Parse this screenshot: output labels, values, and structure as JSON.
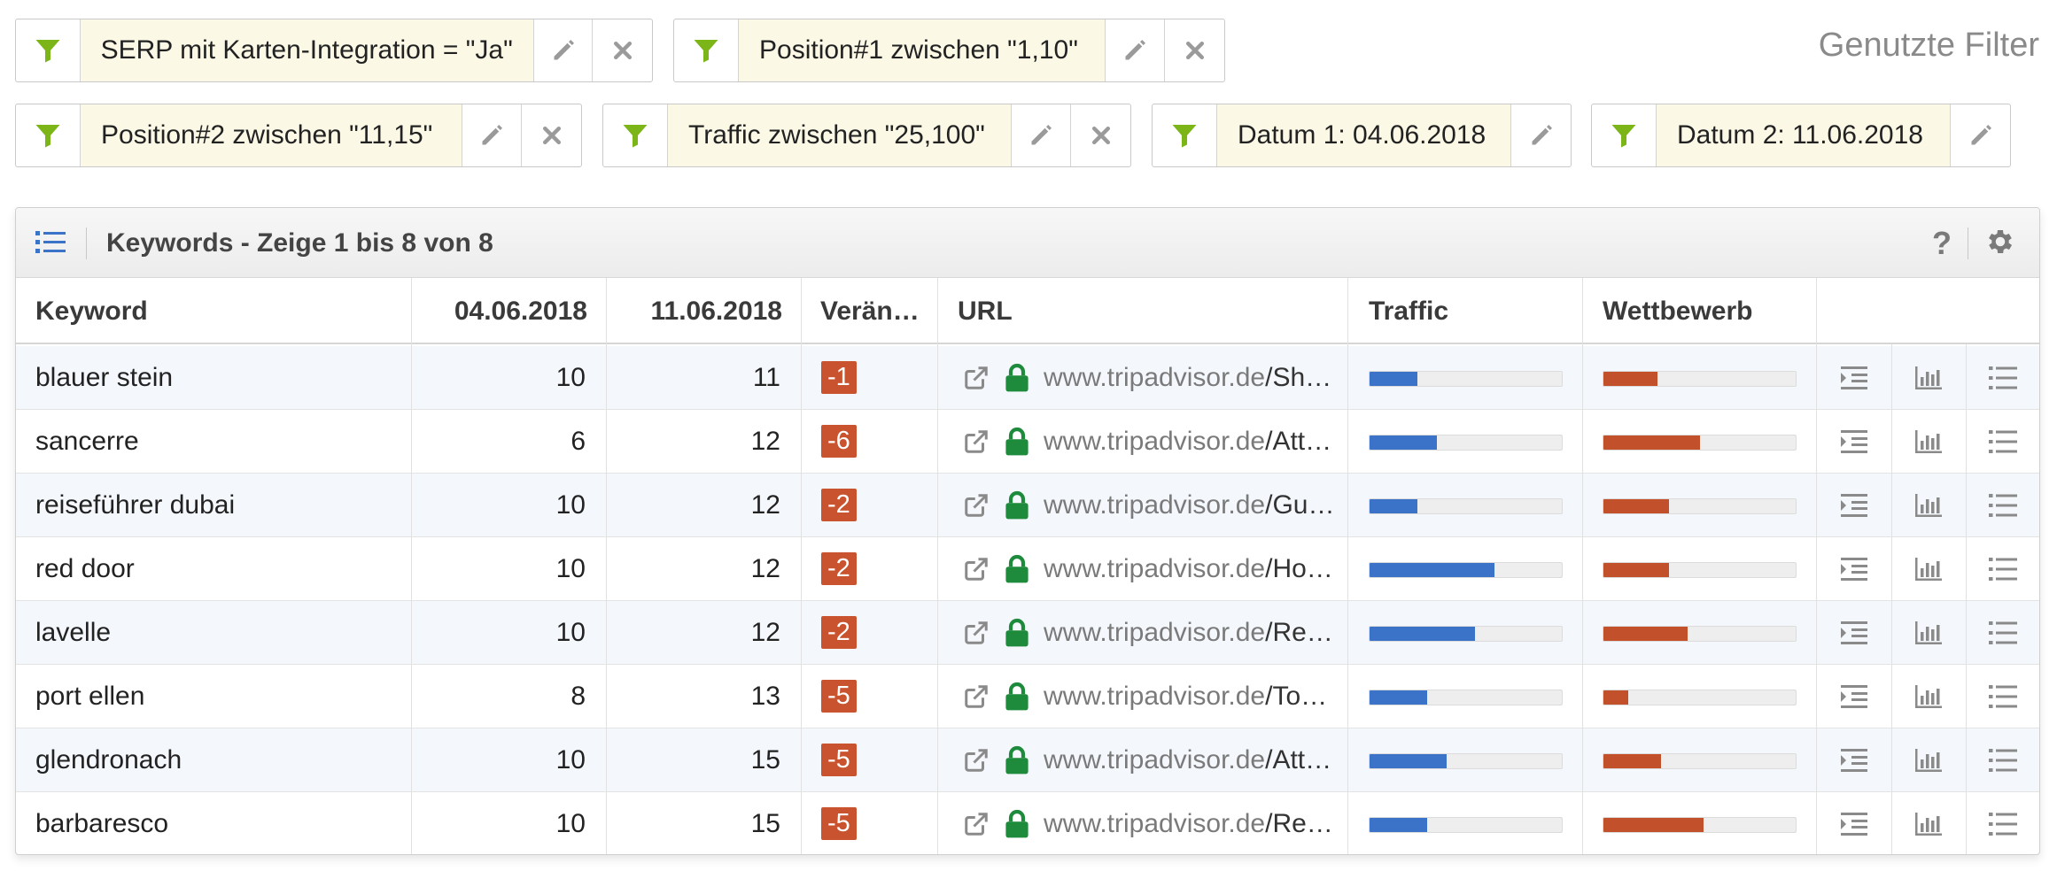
{
  "filters": {
    "heading": "Genutzte Filter",
    "chips": [
      {
        "label": "SERP mit Karten-Integration = \"Ja\"",
        "removable": true
      },
      {
        "label": "Position#1 zwischen \"1,10\"",
        "removable": true
      },
      {
        "label": "Position#2 zwischen \"11,15\"",
        "removable": true
      },
      {
        "label": "Traffic zwischen \"25,100\"",
        "removable": true
      },
      {
        "label": "Datum 1: 04.06.2018",
        "removable": false
      },
      {
        "label": "Datum 2: 11.06.2018",
        "removable": false
      }
    ]
  },
  "panel": {
    "title": "Keywords - Zeige 1 bis 8 von 8",
    "help_label": "?"
  },
  "table": {
    "columns": {
      "keyword": "Keyword",
      "date1": "04.06.2018",
      "date2": "11.06.2018",
      "change": "Verän…",
      "url": "URL",
      "traffic": "Traffic",
      "competition": "Wettbewerb"
    },
    "rows": [
      {
        "keyword": "blauer stein",
        "date1": "10",
        "date2": "11",
        "change": "-1",
        "domain": "www.tripadvisor.de",
        "path": "/Sh…",
        "traffic": 0.25,
        "competition": 0.28
      },
      {
        "keyword": "sancerre",
        "date1": "6",
        "date2": "12",
        "change": "-6",
        "domain": "www.tripadvisor.de",
        "path": "/Att…",
        "traffic": 0.35,
        "competition": 0.5
      },
      {
        "keyword": "reiseführer dubai",
        "date1": "10",
        "date2": "12",
        "change": "-2",
        "domain": "www.tripadvisor.de",
        "path": "/Gu…",
        "traffic": 0.25,
        "competition": 0.34
      },
      {
        "keyword": "red door",
        "date1": "10",
        "date2": "12",
        "change": "-2",
        "domain": "www.tripadvisor.de",
        "path": "/Ho…",
        "traffic": 0.65,
        "competition": 0.34
      },
      {
        "keyword": "lavelle",
        "date1": "10",
        "date2": "12",
        "change": "-2",
        "domain": "www.tripadvisor.de",
        "path": "/Re…",
        "traffic": 0.55,
        "competition": 0.44
      },
      {
        "keyword": "port ellen",
        "date1": "8",
        "date2": "13",
        "change": "-5",
        "domain": "www.tripadvisor.de",
        "path": "/To…",
        "traffic": 0.3,
        "competition": 0.13
      },
      {
        "keyword": "glendronach",
        "date1": "10",
        "date2": "15",
        "change": "-5",
        "domain": "www.tripadvisor.de",
        "path": "/Att…",
        "traffic": 0.4,
        "competition": 0.3
      },
      {
        "keyword": "barbaresco",
        "date1": "10",
        "date2": "15",
        "change": "-5",
        "domain": "www.tripadvisor.de",
        "path": "/Re…",
        "traffic": 0.3,
        "competition": 0.52
      }
    ]
  },
  "colors": {
    "traffic_bar": "#3b73c9",
    "competition_bar": "#c2502a",
    "change_badge": "#c9532e",
    "funnel": "#7cb518",
    "lock": "#1e8a3b",
    "filter_label_bg": "#fbf8e6"
  },
  "icons": {
    "filter": "funnel-icon",
    "edit": "pencil-icon",
    "remove": "close-icon",
    "list": "list-icon",
    "help": "help-icon",
    "settings": "gear-icon",
    "external": "external-link-icon",
    "secure": "lock-icon",
    "row_action_1": "indent-icon",
    "row_action_2": "bar-chart-icon",
    "row_action_3": "list-icon"
  }
}
